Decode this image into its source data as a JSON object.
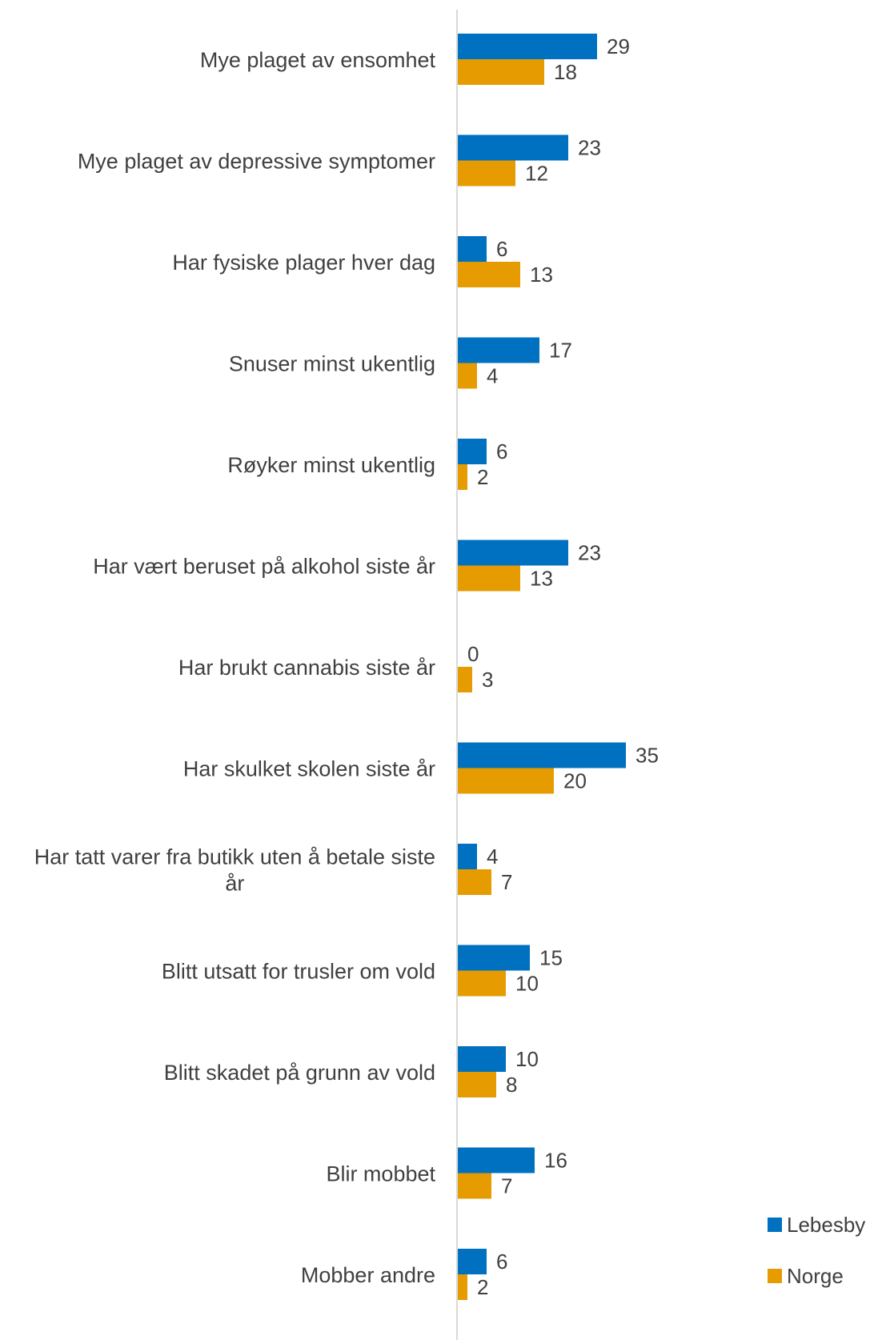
{
  "chart_data": {
    "type": "bar",
    "orientation": "horizontal",
    "categories": [
      [
        "Mye plaget av ensomhet"
      ],
      [
        "Mye plaget av depressive symptomer"
      ],
      [
        "Har fysiske plager hver dag"
      ],
      [
        "Snuser minst ukentlig"
      ],
      [
        "Røyker minst ukentlig"
      ],
      [
        "Har vært beruset på alkohol siste år"
      ],
      [
        "Har brukt cannabis siste år"
      ],
      [
        "Har skulket skolen siste år"
      ],
      [
        "Har tatt varer fra butikk uten å betale siste",
        "år"
      ],
      [
        "Blitt utsatt for trusler om vold"
      ],
      [
        "Blitt skadet på grunn av vold"
      ],
      [
        "Blir mobbet"
      ],
      [
        "Mobber andre"
      ]
    ],
    "series": [
      {
        "name": "Lebesby",
        "color": "#0070C0",
        "values": [
          29,
          23,
          6,
          17,
          6,
          23,
          0,
          35,
          4,
          15,
          10,
          16,
          6
        ]
      },
      {
        "name": "Norge",
        "color": "#E69B00",
        "values": [
          18,
          12,
          13,
          4,
          2,
          13,
          3,
          20,
          7,
          10,
          8,
          7,
          2
        ]
      }
    ],
    "xlim": [
      0,
      35
    ],
    "grid": false,
    "legend_position": "bottom-right",
    "axis_color": "#D9D9D9"
  }
}
